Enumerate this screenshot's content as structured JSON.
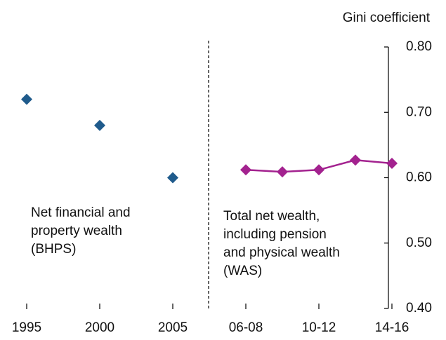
{
  "chart_data": {
    "type": "line",
    "y_axis_label": "Gini coefficient",
    "categories": [
      "1995",
      null,
      "2000",
      null,
      "2005",
      null,
      "06-08",
      null,
      "10-12",
      null,
      "14-16"
    ],
    "series": [
      {
        "name": "BHPS",
        "color": "#1f5b8c",
        "values": [
          0.72,
          null,
          0.68,
          null,
          0.6,
          null,
          null,
          null,
          null,
          null,
          null
        ]
      },
      {
        "name": "WAS",
        "color": "#a3228f",
        "values": [
          null,
          null,
          null,
          null,
          null,
          null,
          0.612,
          0.609,
          0.612,
          0.627,
          0.622
        ]
      }
    ],
    "ylim": [
      0.4,
      0.8
    ],
    "yticks": [
      {
        "value": 0.4,
        "label": "0.40"
      },
      {
        "value": 0.5,
        "label": "0.50"
      },
      {
        "value": 0.6,
        "label": "0.60"
      },
      {
        "value": 0.7,
        "label": "0.70"
      },
      {
        "value": 0.8,
        "label": "0.80"
      }
    ],
    "annotations": [
      {
        "lines": [
          "Net financial and",
          "property wealth",
          "(BHPS)"
        ]
      },
      {
        "lines": [
          "Total net wealth,",
          "including pension",
          "and physical wealth",
          "(WAS)"
        ]
      }
    ]
  }
}
